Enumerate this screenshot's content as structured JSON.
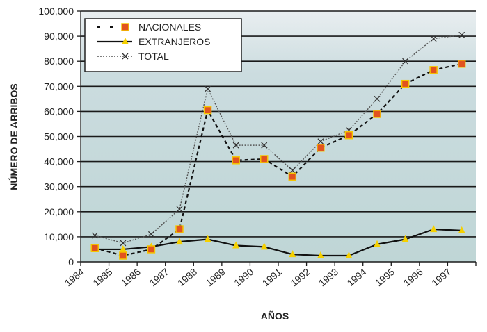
{
  "chart_data": {
    "type": "line",
    "title": "",
    "xlabel": "AÑOS",
    "ylabel": "NÚMERO DE ARRIBOS",
    "ylim": [
      0,
      100000
    ],
    "yticks": [
      "0",
      "10,000",
      "20,000",
      "30,000",
      "40,000",
      "50,000",
      "60,000",
      "70,000",
      "80,000",
      "90,000",
      "100,000"
    ],
    "categories": [
      "1984",
      "1985",
      "1986",
      "1987",
      "1988",
      "1989",
      "1990",
      "1991",
      "1992",
      "1993",
      "1994",
      "1995",
      "1996",
      "1997"
    ],
    "grid": true,
    "legend_position": "top-left",
    "series": [
      {
        "name": "NACIONALES",
        "style": "dashed",
        "marker": "square",
        "color": "#e2531f",
        "values": [
          5500,
          2500,
          5000,
          13000,
          60500,
          40500,
          41000,
          34000,
          45500,
          50500,
          59000,
          71000,
          76500,
          79000
        ]
      },
      {
        "name": "EXTRANJEROS",
        "style": "solid",
        "marker": "triangle",
        "color": "#f5d000",
        "values": [
          5000,
          5000,
          6000,
          8000,
          9000,
          6500,
          6000,
          3000,
          2500,
          2500,
          7000,
          9000,
          13000,
          12500
        ]
      },
      {
        "name": "TOTAL",
        "style": "dotted",
        "marker": "x",
        "color": "#333333",
        "values": [
          10500,
          7500,
          11000,
          21000,
          69000,
          46500,
          46500,
          36500,
          48000,
          52500,
          65000,
          80000,
          89000,
          90500
        ]
      }
    ]
  }
}
